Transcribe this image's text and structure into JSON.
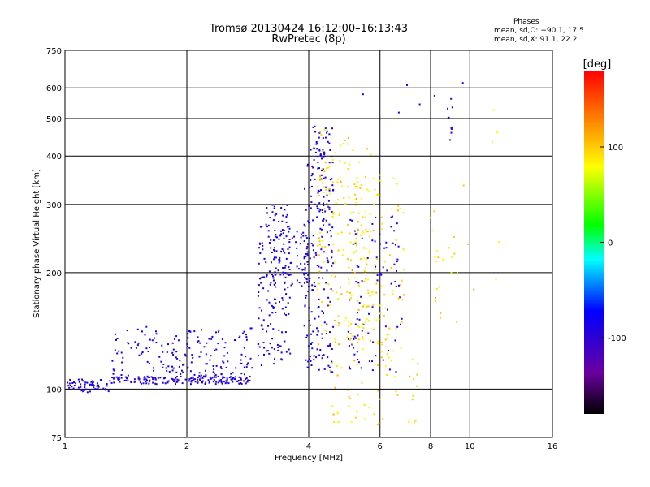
{
  "chart_data": {
    "type": "scatter",
    "title": "Tromsø 20130424 16:12:00–16:13:43",
    "subtitle": "RwPretec (8p)",
    "xlabel": "Frequency [MHz]",
    "ylabel": "Stationary phase Virtual Height [km]",
    "x_scale": "log",
    "y_scale": "log",
    "xlim": [
      1,
      16
    ],
    "ylim": [
      75,
      750
    ],
    "x_ticks": [
      1,
      2,
      4,
      6,
      8,
      10,
      16
    ],
    "y_ticks": [
      75,
      100,
      200,
      300,
      400,
      500,
      600,
      750
    ],
    "grid": true,
    "phases_box": {
      "title": "Phases",
      "line_o": "mean, sd,O: −90.1, 17.5",
      "line_x": "mean, sd,X:  91.1, 22.2"
    },
    "colorbar": {
      "label": "[deg]",
      "range": [
        -180,
        180
      ],
      "ticks": [
        100,
        0,
        -100
      ]
    },
    "o_trace": {
      "phase_mean": -90.1,
      "phase_sd": 17.5,
      "clusters": [
        {
          "x": [
            1.0,
            1.3
          ],
          "y": [
            98,
            106
          ],
          "n": 55
        },
        {
          "x": [
            1.3,
            2.9
          ],
          "y": [
            103,
            108
          ],
          "n": 170
        },
        {
          "x": [
            1.3,
            2.9
          ],
          "y": [
            108,
            145
          ],
          "n": 170
        },
        {
          "x": [
            3.0,
            3.6
          ],
          "y": [
            115,
            300
          ],
          "n": 160
        },
        {
          "x": [
            3.2,
            4.0
          ],
          "y": [
            180,
            260
          ],
          "n": 80
        },
        {
          "x": [
            3.9,
            4.6
          ],
          "y": [
            110,
            420
          ],
          "n": 210
        },
        {
          "x": [
            4.1,
            4.6
          ],
          "y": [
            380,
            480
          ],
          "n": 30
        },
        {
          "x": [
            5.0,
            6.8
          ],
          "y": [
            110,
            280
          ],
          "n": 90
        },
        {
          "x": [
            8.8,
            9.2
          ],
          "y": [
            440,
            540
          ],
          "n": 8
        },
        {
          "x": [
            5.0,
            10.0
          ],
          "y": [
            500,
            660
          ],
          "n": 8
        }
      ]
    },
    "x_trace": {
      "phase_mean": 91.1,
      "phase_sd": 22.2,
      "clusters": [
        {
          "x": [
            4.2,
            5.7
          ],
          "y": [
            130,
            470
          ],
          "n": 160
        },
        {
          "x": [
            5.0,
            6.9
          ],
          "y": [
            120,
            360
          ],
          "n": 120
        },
        {
          "x": [
            4.5,
            7.5
          ],
          "y": [
            80,
            120
          ],
          "n": 50
        },
        {
          "x": [
            8.0,
            9.2
          ],
          "y": [
            140,
            290
          ],
          "n": 20
        },
        {
          "x": [
            9.0,
            12.0
          ],
          "y": [
            120,
            560
          ],
          "n": 10
        }
      ]
    }
  }
}
